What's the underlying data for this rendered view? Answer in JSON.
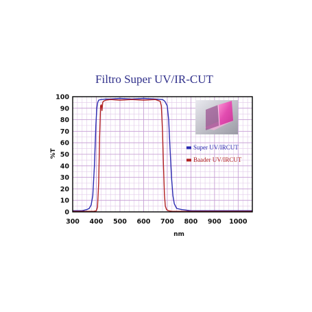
{
  "chart_data": {
    "type": "line",
    "title": "Filtro Super UV/IR-CUT",
    "xlabel": "nm",
    "ylabel": "%T",
    "xlim": [
      300,
      1060
    ],
    "ylim": [
      0,
      100
    ],
    "xticks": [
      300,
      400,
      500,
      600,
      700,
      800,
      900,
      1000
    ],
    "yticks": [
      0,
      10,
      20,
      30,
      40,
      50,
      60,
      70,
      80,
      90,
      100
    ],
    "grid": true,
    "legend_position": "right",
    "series": [
      {
        "name": "Super UV/IRCUT",
        "color": "#2a2ab0",
        "x": [
          300,
          340,
          360,
          370,
          378,
          385,
          392,
          398,
          402,
          406,
          410,
          420,
          440,
          460,
          500,
          550,
          600,
          650,
          680,
          690,
          700,
          706,
          712,
          718,
          724,
          730,
          740,
          760,
          800,
          1060
        ],
        "y": [
          1,
          1,
          2,
          3,
          6,
          14,
          40,
          75,
          90,
          95,
          97,
          97.5,
          98,
          98,
          98.5,
          98,
          98.5,
          98,
          97.5,
          96,
          92,
          80,
          55,
          30,
          14,
          7,
          3,
          2,
          1,
          1
        ]
      },
      {
        "name": "Baader UV/IRCUT",
        "color": "#b02020",
        "x": [
          300,
          390,
          400,
          405,
          410,
          414,
          418,
          421,
          424,
          427,
          430,
          440,
          460,
          500,
          550,
          600,
          650,
          670,
          675,
          680,
          684,
          688,
          692,
          697,
          705,
          720,
          1060
        ],
        "y": [
          0.5,
          0.5,
          1,
          4,
          25,
          65,
          92,
          93,
          88,
          95,
          96,
          97,
          97.5,
          97,
          97.5,
          97,
          97.5,
          96,
          92,
          70,
          40,
          15,
          5,
          2,
          1,
          0.5,
          0.5
        ]
      }
    ]
  },
  "inset_image": "pink-dichroic-filter-photo"
}
